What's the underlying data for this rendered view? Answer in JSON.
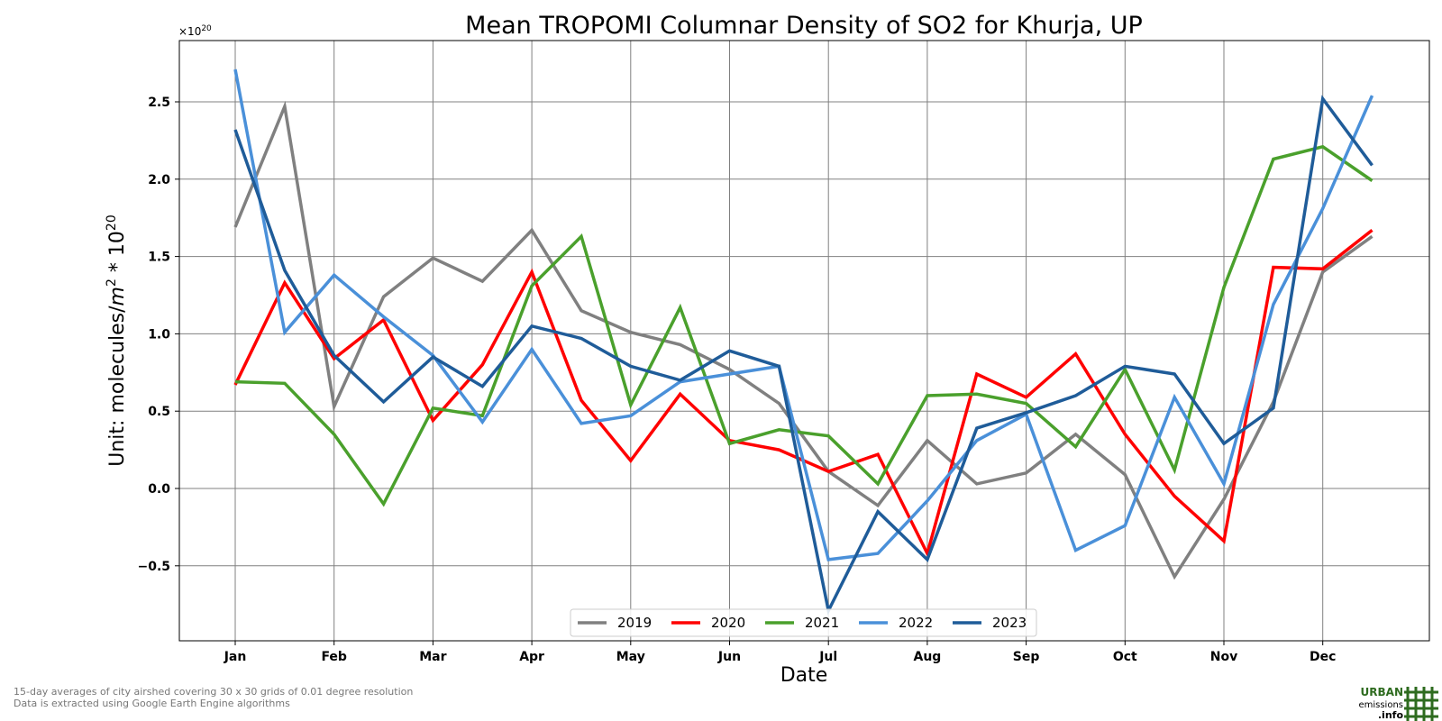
{
  "chart_data": {
    "type": "line",
    "title": "Mean TROPOMI Columnar Density of SO2 for Khurja, UP",
    "xlabel": "Date",
    "ylabel": "Unit: molecules/m² * 10²⁰",
    "ylabel_parts": {
      "base": "Unit: molecules/",
      "m": "m",
      "m_exp": "2",
      "mid": " * 10",
      "exp": "20"
    },
    "offset_text": {
      "base": "×10",
      "exp": "20"
    },
    "x_ticks": [
      "Jan",
      "Feb",
      "Mar",
      "Apr",
      "May",
      "Jun",
      "Jul",
      "Aug",
      "Sep",
      "Oct",
      "Nov",
      "Dec"
    ],
    "x_period": "15-day",
    "y_ticks": [
      "−0.5",
      "0.0",
      "0.5",
      "1.0",
      "1.5",
      "2.0",
      "2.5"
    ],
    "y_tick_values": [
      -0.5,
      0.0,
      0.5,
      1.0,
      1.5,
      2.0,
      2.5
    ],
    "xlim": [
      -0.6,
      23.6
    ],
    "ylim": [
      -0.98,
      2.9
    ],
    "grid": true,
    "legend_position": "bottom-center",
    "series": [
      {
        "name": "2019",
        "color": "#808080",
        "values": [
          1.69,
          2.47,
          0.53,
          1.24,
          1.49,
          1.34,
          1.67,
          1.15,
          1.01,
          0.93,
          0.77,
          0.55,
          0.11,
          -0.11,
          0.31,
          0.03,
          0.1,
          0.35,
          0.09,
          -0.57,
          -0.07,
          0.56,
          1.4,
          1.63
        ]
      },
      {
        "name": "2020",
        "color": "#ff0000",
        "values": [
          0.67,
          1.33,
          0.84,
          1.09,
          0.44,
          0.8,
          1.4,
          0.57,
          0.18,
          0.61,
          0.31,
          0.25,
          0.11,
          0.22,
          -0.42,
          0.74,
          0.59,
          0.87,
          0.35,
          -0.05,
          -0.34,
          1.43,
          1.42,
          1.67
        ]
      },
      {
        "name": "2021",
        "color": "#4aa02c",
        "values": [
          0.69,
          0.68,
          0.35,
          -0.1,
          0.52,
          0.47,
          1.31,
          1.63,
          0.54,
          1.17,
          0.29,
          0.38,
          0.34,
          0.03,
          0.6,
          0.61,
          0.55,
          0.27,
          0.77,
          0.12,
          1.3,
          2.13,
          2.21,
          1.99
        ]
      },
      {
        "name": "2022",
        "color": "#4a90d9",
        "values": [
          2.71,
          1.01,
          1.38,
          1.11,
          0.86,
          0.43,
          0.9,
          0.42,
          0.47,
          0.69,
          0.74,
          0.79,
          -0.46,
          -0.42,
          -0.08,
          0.31,
          0.48,
          -0.4,
          -0.24,
          0.59,
          0.03,
          1.19,
          1.81,
          2.54
        ]
      },
      {
        "name": "2023",
        "color": "#1f5c99",
        "values": [
          2.32,
          1.41,
          0.86,
          0.56,
          0.85,
          0.66,
          1.05,
          0.97,
          0.79,
          0.7,
          0.89,
          0.79,
          -0.79,
          -0.15,
          -0.46,
          0.39,
          0.49,
          0.6,
          0.79,
          0.74,
          0.29,
          0.52,
          2.52,
          2.09
        ]
      }
    ]
  },
  "footnote": {
    "line1": "15-day averages of city airshed covering 30 x 30 grids of 0.01 degree resolution",
    "line2": "Data is extracted using Google Earth Engine algorithms"
  },
  "logo": {
    "word1": "URBAN",
    "word2": "emissions",
    "word3": ".info",
    "color": "#2e6b1f"
  }
}
